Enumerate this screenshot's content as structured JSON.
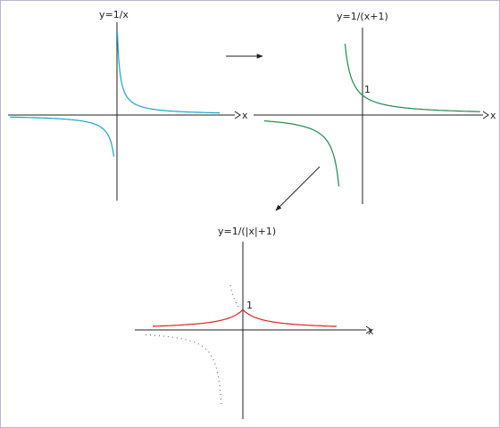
{
  "graphs": {
    "reciprocal": {
      "title": "y=1/x",
      "x_label": "x",
      "color": "#1aa5cf"
    },
    "shifted": {
      "title": "y=1/(x+1)",
      "x_label": "x",
      "intercept_label": "1",
      "color": "#1f8a4e"
    },
    "absolute": {
      "title": "y=1/(|x|+1)",
      "x_label": "x",
      "intercept_label": "1",
      "color": "#dd2222",
      "ghost_color": "#555555"
    }
  },
  "arrows": {
    "color": "#222222"
  }
}
